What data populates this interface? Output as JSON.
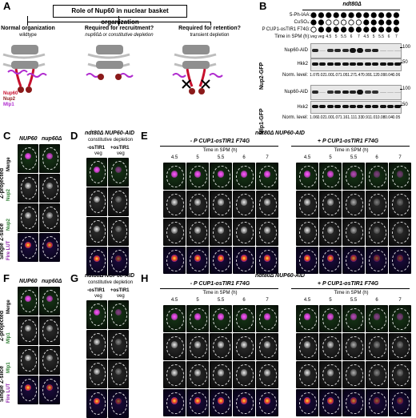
{
  "panel_labels": {
    "a": "A",
    "b": "B",
    "c": "C",
    "d": "D",
    "e": "E",
    "f": "F",
    "g": "G",
    "h": "H"
  },
  "panelA": {
    "title": "Role of Nup60 in nuclear basket organization",
    "col1_title": "Normal organization",
    "col1_sub": "wildtype",
    "col2_title": "Required for recruitment?",
    "col2_sub": "nup60Δ or constitutive depletion",
    "col3_title": "Required for retention?",
    "col3_sub": "transient depletion",
    "legend": [
      {
        "label": "Nup60",
        "color": "#c8102e"
      },
      {
        "label": "Nup2",
        "color": "#8b1a1a"
      },
      {
        "label": "Mlp1",
        "color": "#b02ccf"
      }
    ]
  },
  "panelB": {
    "genotype": "ndt80Δ",
    "row_labels": [
      "5-Ph-IAA:",
      "CuSO₄:",
      "P CUP1-osTIR1 F74G:",
      "Time in SPM (h):"
    ],
    "time_labels": [
      "veg",
      "veg",
      "4.5",
      "5",
      "5.5",
      "6",
      "7",
      "4.5",
      "5",
      "5.5",
      "6",
      "7"
    ],
    "ph_iaa": [
      1,
      1,
      1,
      1,
      1,
      1,
      1,
      1,
      1,
      1,
      1,
      1
    ],
    "cuso4": [
      1,
      1,
      0,
      0,
      0,
      0,
      0,
      1,
      1,
      1,
      1,
      1
    ],
    "ostir1": [
      0,
      1,
      1,
      1,
      1,
      1,
      1,
      1,
      1,
      1,
      1,
      1
    ],
    "blots": [
      {
        "strain": "Nup2-GFP",
        "bands": [
          "Nup60-AID",
          "Hkk2"
        ],
        "markers": [
          "100",
          "50"
        ],
        "norm_label": "Norm. level:",
        "norm": [
          "1.07",
          "0.02",
          "1.00",
          "1.07",
          "1.05",
          "1.27",
          "1.47",
          "0.99",
          "1.12",
          "0.09",
          "0.04",
          "0.06"
        ]
      },
      {
        "strain": "Mlp1-GFP",
        "bands": [
          "Nup60-AID",
          "Hxk2"
        ],
        "markers": [
          "100",
          "50"
        ],
        "norm_label": "Norm. level:",
        "norm": [
          "1.06",
          "0.02",
          "1.00",
          "1.07",
          "1.16",
          "1.11",
          "1.33",
          "0.91",
          "1.01",
          "0.08",
          "0.04",
          "0.05"
        ]
      }
    ]
  },
  "panelC": {
    "cols": [
      "NUP60",
      "nup60Δ"
    ],
    "rows": [
      "Merge",
      "Nup2",
      "Nup2",
      "Fire LUT"
    ],
    "group_a": "Z-projected",
    "group_b": "Single Z-slice"
  },
  "panelD": {
    "title": "ndt80Δ NUP60-AID",
    "subtitle": "constitutive depletion",
    "cols": [
      "-osTIR1",
      "+osTIR1"
    ],
    "col_sub": "veg"
  },
  "panelE": {
    "title": "ndt80Δ NUP60-AID",
    "left_cond": "- P CUP1-osTIR1 F74G",
    "right_cond": "+ P CUP1-osTIR1 F74G",
    "time_label": "Time in SPM (h)",
    "times": [
      "4.5",
      "5",
      "5.5",
      "6",
      "7"
    ]
  },
  "panelF": {
    "cols": [
      "NUP60",
      "nup60Δ"
    ],
    "rows": [
      "Merge",
      "Mlp1",
      "Mlp1",
      "Fire LUT"
    ],
    "group_a": "Z-projected",
    "group_b": "Single Z-slice"
  },
  "panelG": {
    "title": "ndt80Δ NUP60-AID",
    "subtitle": "constitutive depletion",
    "cols": [
      "-osTIR1",
      "+osTIR1"
    ],
    "col_sub": "veg"
  },
  "panelH": {
    "title": "ndt80Δ NUP60-AID",
    "left_cond": "- P CUP1-osTIR1 F74G",
    "right_cond": "+ P CUP1-osTIR1 F74G",
    "time_label": "Time in SPM (h)",
    "times": [
      "4.5",
      "5",
      "5.5",
      "6",
      "7"
    ]
  }
}
